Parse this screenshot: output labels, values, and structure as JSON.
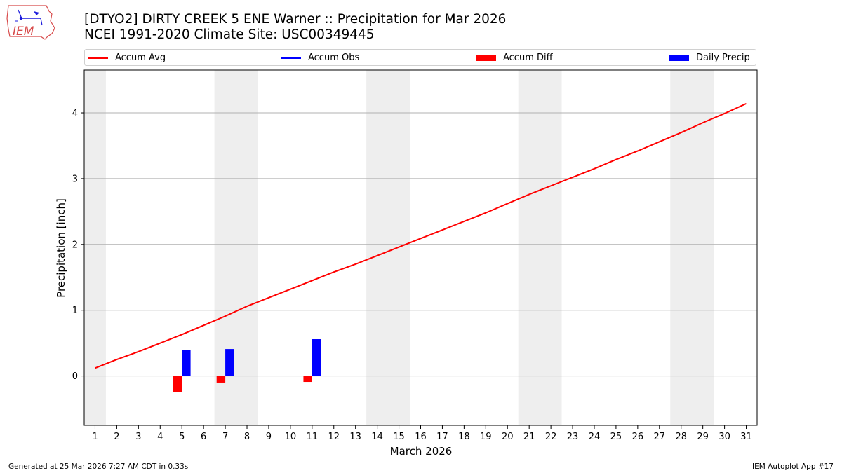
{
  "logo": {
    "text": "IEM"
  },
  "header": {
    "title_line1": "[DTYO2] DIRTY CREEK 5 ENE Warner :: Precipitation for Mar 2026",
    "title_line2": "NCEI 1991-2020 Climate Site: USC00349445"
  },
  "legend": {
    "accum_avg": "Accum Avg",
    "accum_obs": "Accum Obs",
    "accum_diff": "Accum Diff",
    "daily_precip": "Daily Precip"
  },
  "footer": {
    "generated": "Generated at 25 Mar 2026 7:27 AM CDT in 0.33s",
    "app": "IEM Autoplot App #17"
  },
  "colors": {
    "accum_avg": "#ff0000",
    "accum_obs": "#0000ff",
    "accum_diff": "#ff0000",
    "daily_precip": "#0000ff",
    "weekend_shade": "#eeeeee",
    "grid": "#b0b0b0"
  },
  "chart_data": {
    "type": "bar",
    "xlabel": "March 2026",
    "ylabel": "Precipitation [inch]",
    "xlim": [
      0.5,
      31.5
    ],
    "ylim": [
      -0.75,
      4.65
    ],
    "x_ticks": [
      1,
      2,
      3,
      4,
      5,
      6,
      7,
      8,
      9,
      10,
      11,
      12,
      13,
      14,
      15,
      16,
      17,
      18,
      19,
      20,
      21,
      22,
      23,
      24,
      25,
      26,
      27,
      28,
      29,
      30,
      31
    ],
    "y_ticks": [
      0,
      1,
      2,
      3,
      4
    ],
    "grid": "horizontal",
    "legend_position": "top",
    "weekend_spans": [
      [
        0.5,
        1.5
      ],
      [
        6.5,
        8.5
      ],
      [
        13.5,
        15.5
      ],
      [
        20.5,
        22.5
      ],
      [
        27.5,
        29.5
      ]
    ],
    "series": [
      {
        "name": "Accum Avg",
        "kind": "line",
        "x": [
          1,
          2,
          3,
          4,
          5,
          6,
          7,
          8,
          9,
          10,
          11,
          12,
          13,
          14,
          15,
          16,
          17,
          18,
          19,
          20,
          21,
          22,
          23,
          24,
          25,
          26,
          27,
          28,
          29,
          30,
          31
        ],
        "values": [
          0.12,
          0.25,
          0.37,
          0.5,
          0.63,
          0.77,
          0.91,
          1.06,
          1.19,
          1.32,
          1.45,
          1.58,
          1.7,
          1.83,
          1.96,
          2.09,
          2.22,
          2.35,
          2.48,
          2.62,
          2.76,
          2.89,
          3.02,
          3.15,
          3.29,
          3.42,
          3.56,
          3.7,
          3.85,
          3.99,
          4.14
        ]
      },
      {
        "name": "Daily Precip",
        "kind": "bar",
        "x": [
          5,
          7,
          11
        ],
        "values": [
          0.39,
          0.41,
          0.56
        ]
      },
      {
        "name": "Accum Diff",
        "kind": "bar",
        "x": [
          5,
          7,
          11
        ],
        "values": [
          -0.24,
          -0.1,
          -0.09
        ]
      }
    ]
  }
}
